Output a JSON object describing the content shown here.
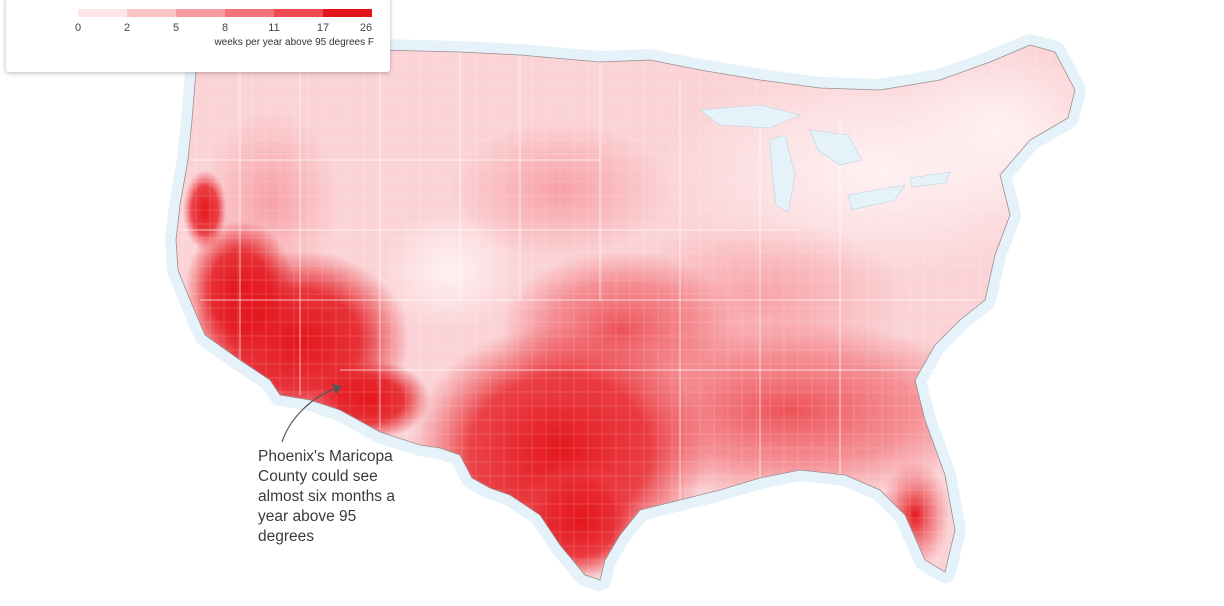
{
  "legend": {
    "colors": [
      "#fde4e5",
      "#fbc4c6",
      "#f79ba0",
      "#f2747a",
      "#ec4a50",
      "#e4161c"
    ],
    "ticks": [
      "0",
      "2",
      "5",
      "8",
      "11",
      "17",
      "26"
    ],
    "caption": "weeks per year above 95 degrees F"
  },
  "annotation": {
    "lines": [
      "Phoenix's Maricopa",
      "County could see",
      "almost six months a",
      "year above 95",
      "degrees"
    ]
  },
  "map": {
    "outline_color": "#f2b6b9",
    "halo_color": "#e6f2fa"
  }
}
